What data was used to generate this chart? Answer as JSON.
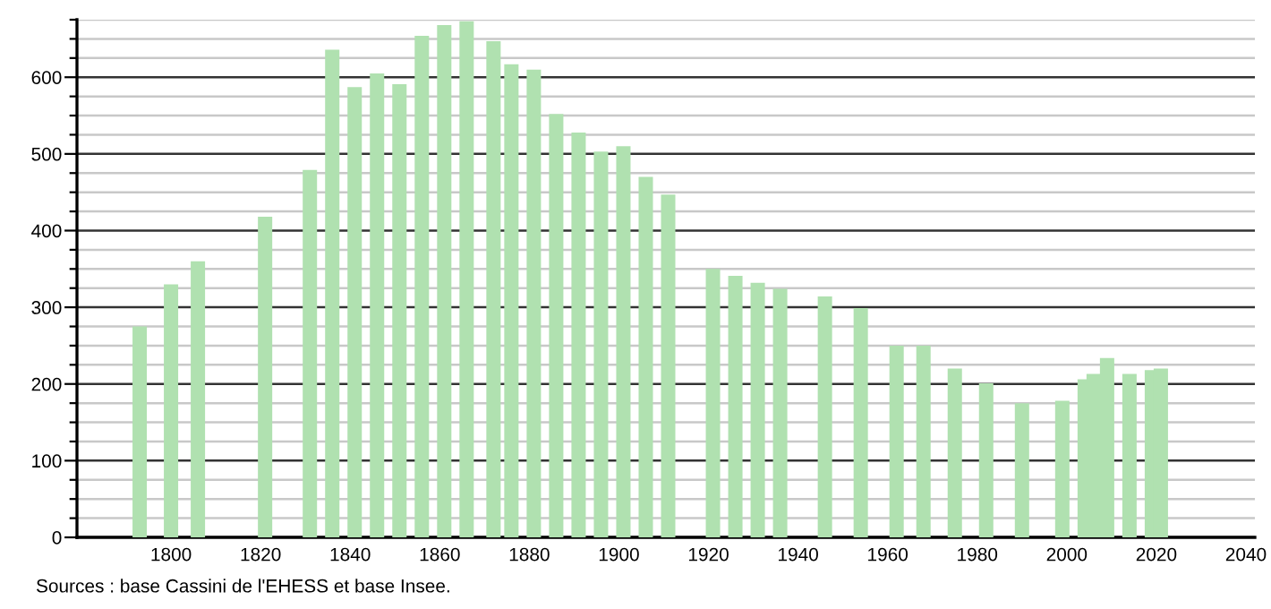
{
  "chart_data": {
    "type": "bar",
    "x": [
      1793,
      1800,
      1806,
      1821,
      1831,
      1836,
      1841,
      1846,
      1851,
      1856,
      1861,
      1866,
      1872,
      1876,
      1881,
      1886,
      1891,
      1896,
      1901,
      1906,
      1911,
      1921,
      1926,
      1931,
      1936,
      1946,
      1954,
      1962,
      1968,
      1975,
      1982,
      1990,
      1999,
      2004,
      2006,
      2009,
      2014,
      2019,
      2021
    ],
    "values": [
      275,
      330,
      360,
      418,
      479,
      636,
      587,
      605,
      591,
      654,
      668,
      673,
      647,
      617,
      610,
      552,
      528,
      503,
      510,
      470,
      447,
      350,
      341,
      332,
      324,
      314,
      299,
      250,
      250,
      220,
      201,
      175,
      178,
      206,
      213,
      234,
      213,
      218,
      220
    ],
    "color": "#b0e1b0",
    "xlim": [
      1779,
      2042
    ],
    "xticks": [
      1800,
      1820,
      1840,
      1860,
      1880,
      1900,
      1920,
      1940,
      1960,
      1980,
      2000,
      2020,
      2040
    ],
    "ylim": [
      0,
      675
    ],
    "yticks": [
      0,
      {
        "value": 25,
        "label": null
      },
      {
        "value": 50,
        "label": null
      },
      {
        "value": 75,
        "label": null
      },
      100,
      {
        "value": 125,
        "label": null
      },
      {
        "value": 150,
        "label": null
      },
      {
        "value": 175,
        "label": null
      },
      200,
      {
        "value": 225,
        "label": null
      },
      {
        "value": 250,
        "label": null
      },
      {
        "value": 275,
        "label": null
      },
      300,
      {
        "value": 325,
        "label": null
      },
      {
        "value": 350,
        "label": null
      },
      {
        "value": 375,
        "label": null
      },
      400,
      {
        "value": 425,
        "label": null
      },
      {
        "value": 450,
        "label": null
      },
      {
        "value": 475,
        "label": null
      },
      500,
      {
        "value": 525,
        "label": null
      },
      {
        "value": 550,
        "label": null
      },
      {
        "value": 575,
        "label": null
      },
      600,
      {
        "value": 625,
        "label": null
      },
      {
        "value": 650,
        "label": null
      },
      {
        "value": 675,
        "label": null
      }
    ],
    "grid": "y",
    "annotations": [
      "Sources : base Cassini de l'EHESS et base Insee."
    ]
  }
}
